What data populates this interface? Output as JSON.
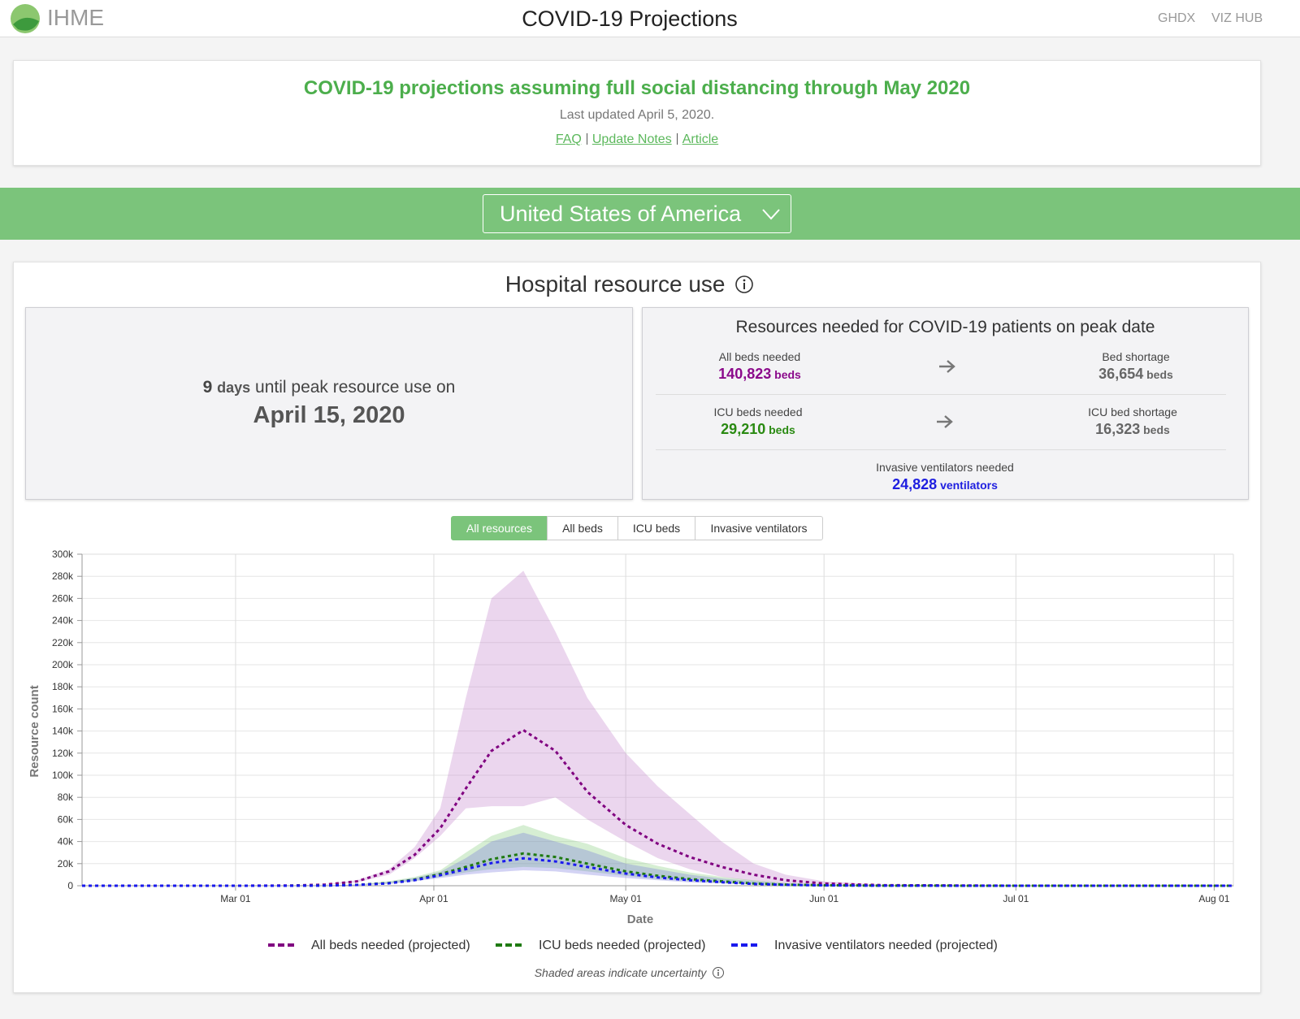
{
  "header": {
    "brand": "IHME",
    "title": "COVID-19 Projections",
    "nav": [
      "GHDX",
      "VIZ HUB"
    ]
  },
  "notice": {
    "title": "COVID-19 projections assuming full social distancing through May 2020",
    "updated": "Last updated April 5, 2020.",
    "links": [
      "FAQ",
      "Update Notes",
      "Article"
    ]
  },
  "location": "United States of America",
  "hospital": {
    "title": "Hospital resource use",
    "peak": {
      "days": "9",
      "days_unit": "days",
      "text": "until peak resource use on",
      "date": "April 15, 2020"
    },
    "resources": {
      "title": "Resources needed for COVID-19 patients on peak date",
      "rows": [
        [
          {
            "label": "All beds needed",
            "value": "140,823",
            "unit": "beds"
          },
          {
            "label": "Bed shortage",
            "value": "36,654",
            "unit": "beds"
          }
        ],
        [
          {
            "label": "ICU beds needed",
            "value": "29,210",
            "unit": "beds"
          },
          {
            "label": "ICU bed shortage",
            "value": "16,323",
            "unit": "beds"
          }
        ],
        [
          {
            "label": "Invasive ventilators needed",
            "value": "24,828",
            "unit": "ventilators"
          }
        ]
      ]
    },
    "tabs": [
      "All resources",
      "All beds",
      "ICU beds",
      "Invasive ventilators"
    ],
    "footnote": "Shaded areas indicate uncertainty"
  },
  "chart_data": {
    "type": "line",
    "x_label": "Date",
    "y_label": "Resource count",
    "grid": true,
    "x": [
      "Feb 06",
      "Mar 01",
      "Mar 10",
      "Mar 15",
      "Mar 20",
      "Mar 25",
      "Mar 29",
      "Apr 02",
      "Apr 06",
      "Apr 10",
      "Apr 15",
      "Apr 20",
      "Apr 25",
      "May 01",
      "May 06",
      "May 11",
      "May 16",
      "May 21",
      "May 26",
      "Jun 01",
      "Jun 10",
      "Jul 01",
      "Aug 04"
    ],
    "xlim": [
      "Feb 06",
      "Aug 04"
    ],
    "xticks": [
      "Mar 01",
      "Apr 01",
      "May 01",
      "Jun 01",
      "Jul 01",
      "Aug 01"
    ],
    "ylim": [
      0,
      300000
    ],
    "yticks": [
      0,
      {
        "value": 20000,
        "label": "20k"
      },
      {
        "value": 40000,
        "label": "40k"
      },
      {
        "value": 60000,
        "label": "60k"
      },
      {
        "value": 80000,
        "label": "80k"
      },
      {
        "value": 100000,
        "label": "100k"
      },
      {
        "value": 120000,
        "label": "120k"
      },
      {
        "value": 140000,
        "label": "140k"
      },
      {
        "value": 160000,
        "label": "160k"
      },
      {
        "value": 180000,
        "label": "180k"
      },
      {
        "value": 200000,
        "label": "200k"
      },
      {
        "value": 220000,
        "label": "220k"
      },
      {
        "value": 240000,
        "label": "240k"
      },
      {
        "value": 260000,
        "label": "260k"
      },
      {
        "value": 280000,
        "label": "280k"
      },
      {
        "value": 300000,
        "label": "300k"
      }
    ],
    "series": [
      {
        "name": "All beds needed (projected)",
        "color": "#800080",
        "band_color": "rgba(190,120,200,0.3)",
        "values": [
          0,
          0,
          200,
          1000,
          4000,
          13000,
          28000,
          52000,
          88000,
          122000,
          140823,
          122000,
          85000,
          55000,
          38000,
          26000,
          17000,
          10000,
          5000,
          2000,
          500,
          0,
          0
        ],
        "upper": [
          0,
          0,
          300,
          1200,
          5000,
          15000,
          35000,
          70000,
          170000,
          260000,
          285000,
          230000,
          170000,
          120000,
          90000,
          65000,
          40000,
          20000,
          10000,
          4000,
          1000,
          0,
          0
        ],
        "lower": [
          0,
          0,
          100,
          800,
          3000,
          10000,
          25000,
          45000,
          70000,
          72000,
          72000,
          80000,
          60000,
          40000,
          25000,
          15000,
          8000,
          4000,
          2000,
          800,
          200,
          0,
          0
        ]
      },
      {
        "name": "ICU beds needed (projected)",
        "color": "#1f7a12",
        "band_color": "rgba(120,200,110,0.3)",
        "values": [
          0,
          0,
          50,
          200,
          800,
          2500,
          5500,
          10500,
          17000,
          24000,
          29210,
          26000,
          20000,
          13000,
          9000,
          6000,
          4000,
          2000,
          1000,
          400,
          100,
          0,
          0
        ],
        "upper": [
          0,
          0,
          80,
          300,
          1200,
          4000,
          8000,
          14000,
          30000,
          45000,
          55000,
          45000,
          38000,
          25000,
          18000,
          12000,
          8000,
          5000,
          2500,
          1000,
          300,
          0,
          0
        ],
        "lower": [
          0,
          0,
          20,
          100,
          500,
          2000,
          4500,
          8000,
          12000,
          15000,
          17000,
          16000,
          13000,
          9000,
          6000,
          4000,
          2500,
          1200,
          600,
          200,
          50,
          0,
          0
        ]
      },
      {
        "name": "Invasive ventilators needed (projected)",
        "color": "#1a1aee",
        "band_color": "rgba(110,110,220,0.3)",
        "values": [
          0,
          0,
          40,
          150,
          700,
          2200,
          5000,
          9500,
          15000,
          20500,
          24828,
          22000,
          17000,
          11000,
          7500,
          5000,
          3200,
          1600,
          800,
          300,
          80,
          0,
          0
        ],
        "upper": [
          0,
          0,
          60,
          250,
          1000,
          3500,
          7000,
          12500,
          25000,
          40000,
          48000,
          40000,
          32000,
          20000,
          15000,
          10000,
          6500,
          4000,
          2000,
          800,
          250,
          0,
          0
        ],
        "lower": [
          0,
          0,
          15,
          80,
          400,
          1600,
          4000,
          7000,
          10000,
          12000,
          14000,
          13000,
          10000,
          7000,
          5000,
          3000,
          2000,
          1000,
          500,
          150,
          40,
          0,
          0
        ]
      }
    ]
  }
}
